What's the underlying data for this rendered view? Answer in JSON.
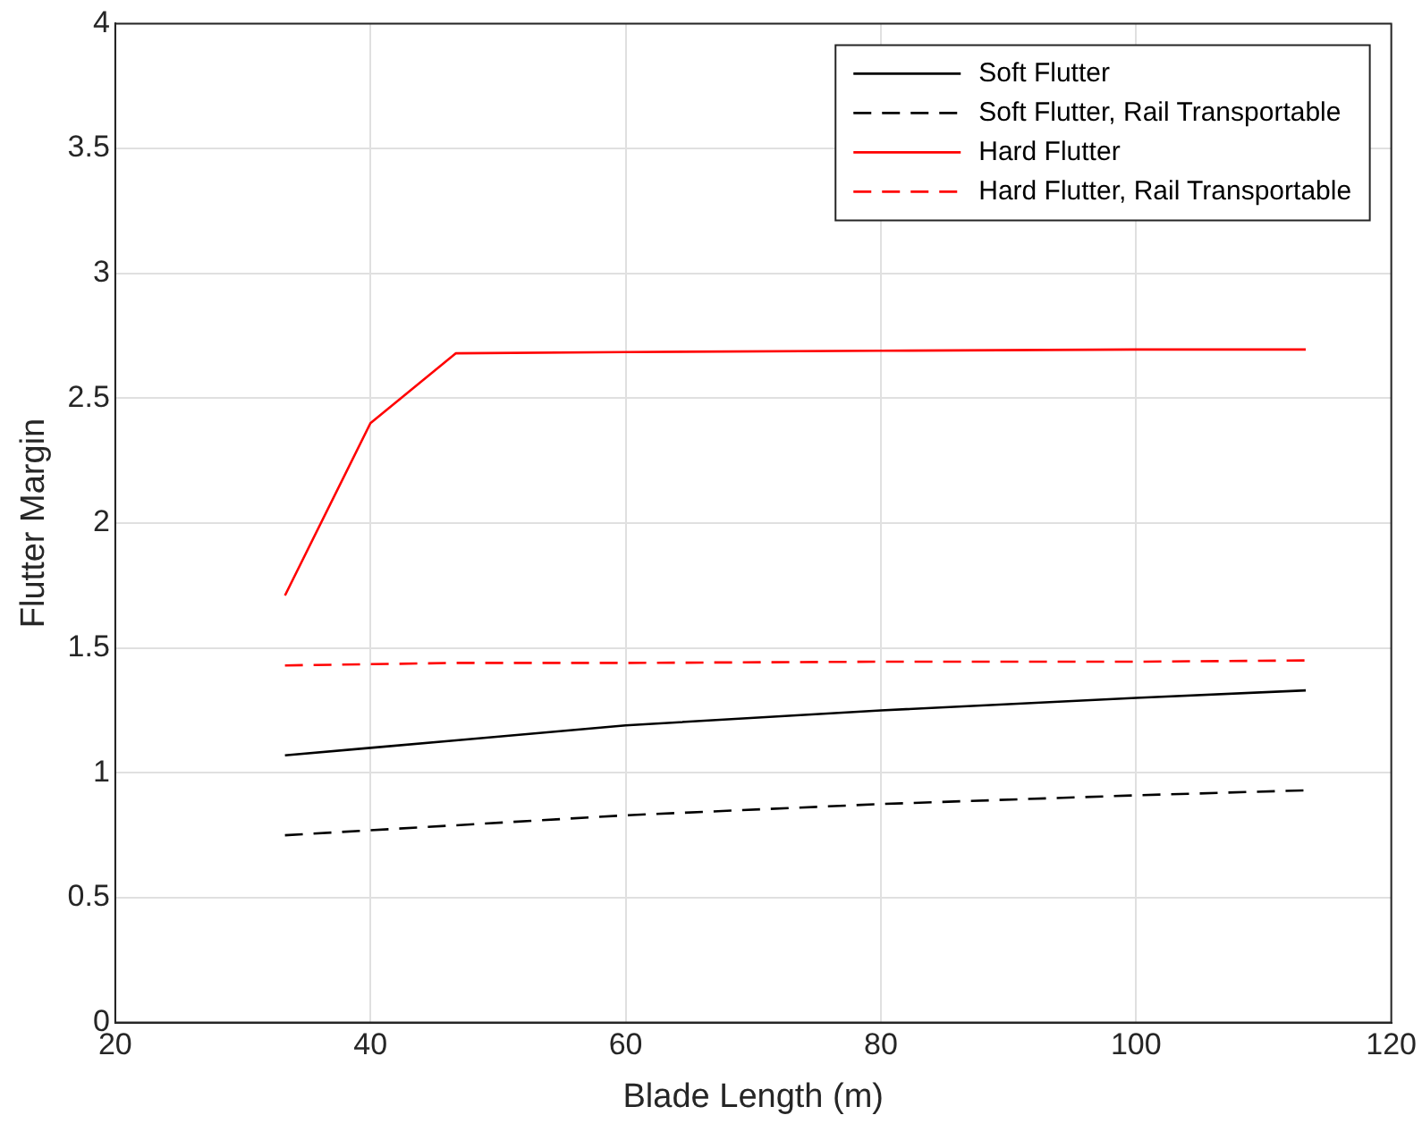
{
  "chart_data": {
    "type": "line",
    "xlabel": "Blade Length (m)",
    "ylabel": "Flutter Margin",
    "x": [
      33.3,
      40,
      46.7,
      60,
      80,
      100,
      113.3
    ],
    "xlim": [
      20,
      120
    ],
    "xticks": [
      20,
      40,
      60,
      80,
      100,
      120
    ],
    "ylim": [
      0,
      4
    ],
    "yticks": [
      0,
      0.5,
      1,
      1.5,
      2,
      2.5,
      3,
      3.5,
      4
    ],
    "grid": true,
    "legend": "top right",
    "marker": "none",
    "series": [
      {
        "name": "Soft Flutter",
        "color": "#000000",
        "line_style": "solid",
        "values": [
          1.07,
          1.1,
          1.13,
          1.19,
          1.25,
          1.3,
          1.33
        ]
      },
      {
        "name": "Soft Flutter, Rail Transportable",
        "color": "#000000",
        "line_style": "dashed",
        "values": [
          0.75,
          0.77,
          0.79,
          0.83,
          0.875,
          0.91,
          0.93
        ]
      },
      {
        "name": "Hard Flutter",
        "color": "#ff0000",
        "line_style": "solid",
        "values": [
          1.71,
          2.4,
          2.68,
          2.685,
          2.69,
          2.695,
          2.695
        ]
      },
      {
        "name": "Hard Flutter, Rail Transportable",
        "color": "#ff0000",
        "line_style": "dashed",
        "values": [
          1.43,
          1.435,
          1.44,
          1.44,
          1.445,
          1.445,
          1.45
        ]
      }
    ]
  }
}
